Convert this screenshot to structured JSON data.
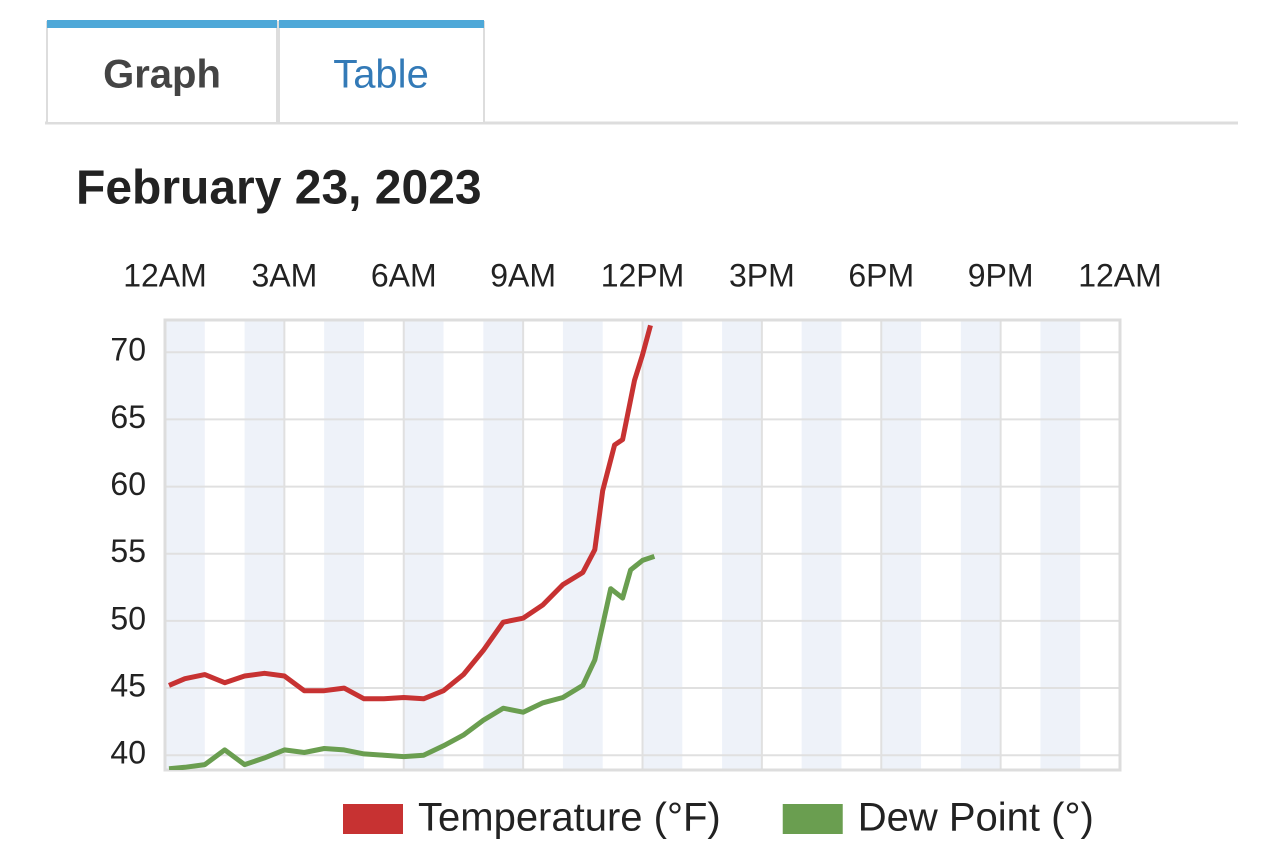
{
  "tabs": [
    "Graph",
    "Table"
  ],
  "chart_data": {
    "type": "line",
    "title": "February 23, 2023",
    "xlim": [
      0,
      24
    ],
    "xticks": [
      {
        "value": 0,
        "label": "12AM"
      },
      {
        "value": 3,
        "label": "3AM"
      },
      {
        "value": 6,
        "label": "6AM"
      },
      {
        "value": 9,
        "label": "9AM"
      },
      {
        "value": 12,
        "label": "12PM"
      },
      {
        "value": 15,
        "label": "3PM"
      },
      {
        "value": 18,
        "label": "6PM"
      },
      {
        "value": 21,
        "label": "9PM"
      },
      {
        "value": 24,
        "label": "12AM"
      }
    ],
    "ylim": [
      38.9,
      72.4
    ],
    "yticks": [
      40,
      45,
      50,
      55,
      60,
      65,
      70
    ],
    "grid": true,
    "series": [
      {
        "name": "Temperature (°F)",
        "color": "#c73232",
        "x": [
          0.1,
          0.5,
          1,
          1.5,
          2,
          2.5,
          3,
          3.5,
          4,
          4.5,
          5,
          5.5,
          6,
          6.5,
          7,
          7.5,
          8,
          8.5,
          9,
          9.5,
          10,
          10.5,
          10.8,
          11,
          11.3,
          11.5,
          11.8,
          12,
          12.2
        ],
        "values": [
          45.2,
          45.7,
          46.0,
          45.4,
          45.9,
          46.1,
          45.9,
          44.8,
          44.8,
          45.0,
          44.2,
          44.2,
          44.3,
          44.2,
          44.8,
          46.0,
          47.8,
          49.9,
          50.2,
          51.2,
          52.7,
          53.6,
          55.3,
          59.7,
          63.1,
          63.5,
          67.9,
          69.8,
          72.0
        ]
      },
      {
        "name": "Dew Point (°)",
        "color": "#6a9e50",
        "x": [
          0.1,
          0.5,
          1,
          1.5,
          2,
          2.5,
          3,
          3.5,
          4,
          4.5,
          5,
          5.5,
          6,
          6.5,
          7,
          7.5,
          8,
          8.5,
          9,
          9.5,
          10,
          10.5,
          10.8,
          11,
          11.2,
          11.5,
          11.7,
          12,
          12.3
        ],
        "values": [
          39.0,
          39.1,
          39.3,
          40.4,
          39.3,
          39.8,
          40.4,
          40.2,
          40.5,
          40.4,
          40.1,
          40.0,
          39.9,
          40.0,
          40.7,
          41.5,
          42.6,
          43.5,
          43.2,
          43.9,
          44.3,
          45.2,
          47.1,
          49.7,
          52.4,
          51.7,
          53.8,
          54.5,
          54.8
        ]
      }
    ]
  }
}
